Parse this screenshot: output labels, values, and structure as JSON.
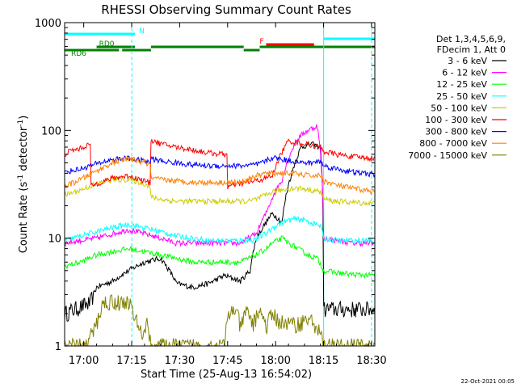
{
  "chart_data": {
    "type": "line",
    "title": "RHESSI Observing Summary Count Rates",
    "xlabel": "Start Time (25-Aug-13 16:54:02)",
    "ylabel": "Count Rate (s",
    "ylabel_sup1": "-1",
    "ylabel_mid": " detector",
    "ylabel_sup2": "-1",
    "ylabel_end": ")",
    "x_units": "minutes after 16:54:02",
    "xlim": [
      0,
      97
    ],
    "ylim": [
      1,
      1000
    ],
    "yscale": "log",
    "x_ticks": [
      {
        "x": 5.97,
        "label": "17:00"
      },
      {
        "x": 20.97,
        "label": "17:15"
      },
      {
        "x": 35.97,
        "label": "17:30"
      },
      {
        "x": 50.97,
        "label": "17:45"
      },
      {
        "x": 65.97,
        "label": "18:00"
      },
      {
        "x": 80.97,
        "label": "18:15"
      },
      {
        "x": 95.97,
        "label": "18:30"
      }
    ],
    "y_ticks": [
      {
        "y": 1,
        "label": "1"
      },
      {
        "y": 10,
        "label": "10"
      },
      {
        "y": 100,
        "label": "100"
      },
      {
        "y": 1000,
        "label": "1000"
      }
    ],
    "legend_header": [
      "Det 1,3,4,5,6,9,",
      "FDecim 1, Att 0"
    ],
    "legend_position": "right",
    "date_stamp": "22-Oct-2021 00:05",
    "flags": [
      {
        "label": "N",
        "color": "#00ffff",
        "segments": [
          [
            0,
            22
          ]
        ]
      },
      {
        "label": "",
        "color": "#00ffff",
        "segments": [
          [
            81,
            97
          ]
        ]
      },
      {
        "label": "F",
        "color": "#ff0000",
        "segments": [
          [
            63,
            78
          ]
        ]
      },
      {
        "label": "RD0",
        "color": "#008000",
        "segments": [
          [
            10,
            22
          ],
          [
            27,
            56
          ],
          [
            61,
            97
          ]
        ]
      },
      {
        "label": "RD6",
        "color": "#008000",
        "segments": [
          [
            0,
            17
          ],
          [
            18,
            27
          ],
          [
            56,
            61
          ]
        ]
      }
    ],
    "vertical_markers": [
      {
        "x": 21,
        "color": "#00ffff",
        "style": "dashed"
      },
      {
        "x": 81,
        "color": "#00ffff",
        "style": "solid"
      },
      {
        "x": 96,
        "color": "#00ffff",
        "style": "dashed"
      }
    ],
    "series": [
      {
        "name": "3 - 6 keV",
        "color": "#000000",
        "x": [
          0,
          8,
          10,
          15,
          20,
          25,
          30,
          35,
          40,
          45,
          50,
          55,
          58,
          60,
          63,
          65,
          68,
          71,
          74,
          77,
          80,
          81,
          85,
          90,
          97
        ],
        "values": [
          2,
          2.5,
          3.5,
          4,
          5,
          6,
          6.5,
          3.8,
          3.5,
          3.8,
          4.5,
          4,
          5,
          10,
          14,
          17,
          14,
          40,
          70,
          75,
          70,
          2.2,
          2.2,
          2.2,
          2.2
        ]
      },
      {
        "name": "6 - 12 keV",
        "color": "#ff00ff",
        "x": [
          0,
          5,
          10,
          15,
          20,
          25,
          30,
          35,
          40,
          45,
          50,
          55,
          60,
          63,
          65,
          68,
          70,
          73,
          76,
          79,
          81,
          85,
          90,
          97
        ],
        "values": [
          9,
          9.5,
          10,
          11,
          12,
          11,
          10,
          9,
          9,
          9,
          9,
          9,
          11,
          17,
          24,
          35,
          55,
          85,
          100,
          110,
          10,
          9.5,
          9,
          9
        ]
      },
      {
        "name": "12 - 25 keV",
        "color": "#00ff00",
        "x": [
          0,
          5,
          10,
          15,
          20,
          25,
          30,
          35,
          40,
          45,
          50,
          55,
          60,
          63,
          65,
          68,
          70,
          73,
          76,
          79,
          81,
          85,
          90,
          97
        ],
        "values": [
          5.5,
          6,
          7,
          7.5,
          8,
          7.5,
          7,
          6.5,
          6,
          6,
          6,
          6,
          7,
          8,
          9,
          10,
          9,
          8,
          7,
          6.5,
          5,
          4.8,
          4.6,
          4.5
        ]
      },
      {
        "name": "25 - 50 keV",
        "color": "#00ffff",
        "x": [
          0,
          5,
          10,
          15,
          20,
          25,
          30,
          35,
          40,
          45,
          50,
          55,
          58,
          60,
          63,
          65,
          68,
          71,
          74,
          77,
          80,
          81,
          85,
          90,
          97
        ],
        "values": [
          9.5,
          10.5,
          11.5,
          12.5,
          13.5,
          12.5,
          11.5,
          10.5,
          10,
          9.5,
          9.5,
          9.5,
          9.5,
          10,
          11,
          12.5,
          14,
          15,
          15,
          14,
          13,
          10,
          9.5,
          9.5,
          9.5
        ]
      },
      {
        "name": "50 - 100 keV",
        "color": "#cccc00",
        "x": [
          0,
          5,
          10,
          15,
          20,
          25,
          26.9,
          27,
          30,
          35,
          40,
          45,
          50,
          55,
          58,
          60,
          63,
          65,
          68,
          71,
          74,
          77,
          80,
          81,
          85,
          90,
          97
        ],
        "values": [
          25,
          28,
          32,
          35,
          35,
          32,
          30,
          24,
          23,
          22,
          22,
          22,
          22,
          22,
          22,
          23,
          25,
          27,
          28,
          29,
          29,
          28,
          27,
          23,
          22,
          21.5,
          21
        ]
      },
      {
        "name": "100 - 300 keV",
        "color": "#ff0000",
        "x": [
          0,
          2,
          5,
          8,
          8.1,
          10,
          15,
          20,
          25,
          26.9,
          27,
          30,
          35,
          40,
          45,
          50,
          50.9,
          51,
          55,
          60,
          63,
          65,
          70,
          75,
          80,
          81,
          85,
          90,
          97
        ],
        "values": [
          60,
          65,
          68,
          75,
          30,
          32,
          36,
          38,
          34,
          32,
          82,
          75,
          70,
          66,
          62,
          60,
          60,
          30,
          32,
          34,
          36,
          38,
          80,
          75,
          70,
          64,
          60,
          57,
          55
        ]
      },
      {
        "name": "300 - 800 keV",
        "color": "#0000ff",
        "x": [
          0,
          5,
          10,
          15,
          20,
          25,
          26.9,
          27,
          30,
          35,
          40,
          45,
          50,
          55,
          60,
          63,
          65,
          68,
          71,
          74,
          77,
          80,
          81,
          85,
          90,
          97
        ],
        "values": [
          41,
          44,
          49,
          54,
          55,
          52,
          50,
          55,
          52,
          50,
          48,
          47,
          47,
          47,
          48,
          52,
          56,
          54,
          52,
          50,
          50,
          52,
          47,
          44,
          41,
          39
        ]
      },
      {
        "name": "800 - 7000 keV",
        "color": "#ff8000",
        "x": [
          0,
          5,
          10,
          15,
          20,
          25,
          26.9,
          27,
          30,
          35,
          40,
          45,
          50,
          55,
          60,
          63,
          65,
          68,
          71,
          74,
          77,
          80,
          81,
          85,
          90,
          97
        ],
        "values": [
          30,
          35,
          42,
          50,
          55,
          50,
          48,
          36,
          35,
          34,
          33,
          33,
          33,
          33,
          38,
          40,
          40,
          40,
          40,
          39,
          38,
          38,
          34,
          31,
          29,
          27
        ]
      },
      {
        "name": "7000 - 15000 keV",
        "color": "#808000",
        "x": [
          0,
          5,
          7,
          10,
          12,
          15,
          18,
          20,
          22,
          24,
          26,
          27,
          30,
          35,
          40,
          45,
          50,
          51,
          53,
          55,
          57,
          59,
          61,
          63,
          65,
          67,
          70,
          73,
          76,
          79,
          81,
          85,
          90,
          95,
          97
        ],
        "values": [
          1,
          1,
          1,
          1.6,
          2.5,
          2.6,
          2.5,
          2.6,
          1.8,
          1.3,
          1.6,
          1,
          1,
          1,
          1,
          1,
          1,
          1.8,
          2.3,
          1.5,
          2.1,
          1.6,
          2.2,
          1.5,
          2.0,
          1.7,
          1.6,
          1.6,
          1.8,
          1.5,
          1,
          1,
          1,
          1,
          1
        ]
      }
    ]
  }
}
